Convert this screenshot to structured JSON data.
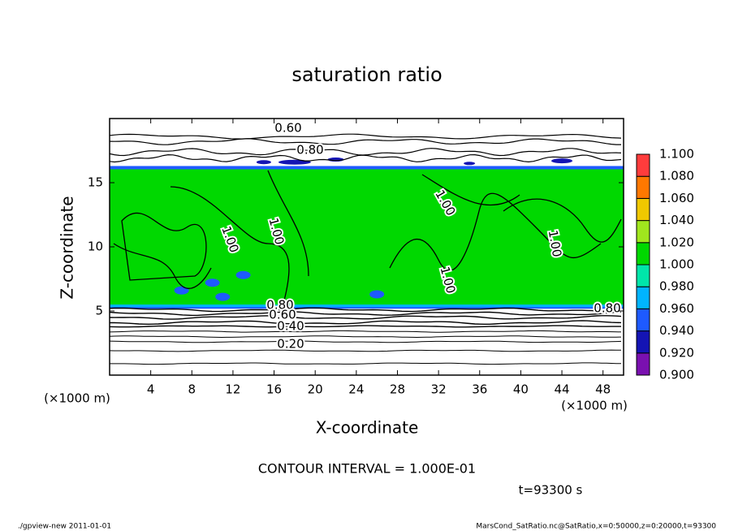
{
  "chart_data": {
    "type": "contour",
    "title": "saturation ratio",
    "x_label": "X-coordinate",
    "y_label": "Z-coordinate",
    "x_unit_label": "(×1000 m)",
    "y_unit_label": "(×1000 m)",
    "xlim": [
      0,
      50
    ],
    "xticks": [
      4,
      8,
      12,
      16,
      20,
      24,
      28,
      32,
      36,
      40,
      44,
      48
    ],
    "ylim": [
      0,
      20
    ],
    "yticks": [
      5,
      10,
      15
    ],
    "colorbar": {
      "levels": [
        {
          "value": 0.9,
          "label": "0.900"
        },
        {
          "value": 0.92,
          "label": "0.920"
        },
        {
          "value": 0.94,
          "label": "0.940"
        },
        {
          "value": 0.96,
          "label": "0.960"
        },
        {
          "value": 0.98,
          "label": "0.980"
        },
        {
          "value": 1.0,
          "label": "1.000"
        },
        {
          "value": 1.02,
          "label": "1.020"
        },
        {
          "value": 1.04,
          "label": "1.040"
        },
        {
          "value": 1.06,
          "label": "1.060"
        },
        {
          "value": 1.08,
          "label": "1.080"
        },
        {
          "value": 1.1,
          "label": "1.100"
        }
      ],
      "colors": [
        "#7a10b0",
        "#1414b4",
        "#1e5aff",
        "#00b4ff",
        "#00e6aa",
        "#00d800",
        "#a0e61e",
        "#f0c800",
        "#ff7800",
        "#ff3c3c"
      ]
    },
    "contour_labels": [
      {
        "value": 0.6,
        "label": "0.60"
      },
      {
        "value": 0.8,
        "label": "0.80"
      },
      {
        "value": 1.0,
        "label": "1.00"
      },
      {
        "value": 1.0,
        "label": "1.00"
      },
      {
        "value": 1.0,
        "label": "1.00"
      },
      {
        "value": 1.0,
        "label": "1.00"
      },
      {
        "value": 1.0,
        "label": "1.00"
      },
      {
        "value": 0.8,
        "label": "0.80"
      },
      {
        "value": 0.6,
        "label": "0.60"
      },
      {
        "value": 0.8,
        "label": "0.80"
      },
      {
        "value": 0.4,
        "label": "0.40"
      },
      {
        "value": 0.2,
        "label": "0.20"
      }
    ],
    "annotation": "CONTOUR INTERVAL = 1.000E-01",
    "time_label": "t=93300 s",
    "footer_left": "./gpview-new  2011-01-01",
    "footer_right": "MarsCond_SatRatio.nc@SatRatio,x=0:50000,z=0:20000,t=93300"
  }
}
